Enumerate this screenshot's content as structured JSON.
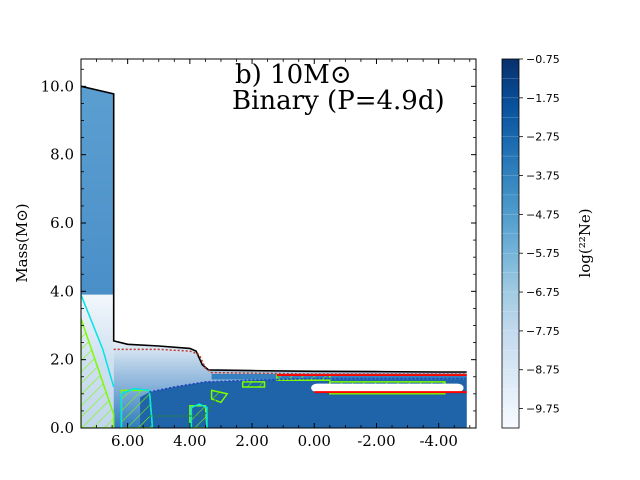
{
  "chart_data": {
    "type": "heatmap",
    "title_line1": "b) 10M⊙",
    "title_line2": "Binary (P=4.9d)",
    "ylabel": "Mass(M⊙)",
    "xlabel": "",
    "x_axis_reversed": true,
    "xlim": [
      7.5,
      -5.2
    ],
    "ylim": [
      0,
      10.8
    ],
    "x_ticks": [
      6.0,
      4.0,
      2.0,
      0.0,
      -2.0,
      -4.0
    ],
    "x_tick_labels": [
      "6.00",
      "4.00",
      "2.00",
      "0.00",
      "-2.00",
      "-4.00"
    ],
    "y_ticks": [
      0.0,
      2.0,
      4.0,
      6.0,
      8.0,
      10.0
    ],
    "y_tick_labels": [
      "0.0",
      "2.0",
      "4.0",
      "6.0",
      "8.0",
      "10.0"
    ],
    "colorbar": {
      "label": "log(²²Ne)",
      "range": [
        -10.25,
        -0.75
      ],
      "tick_values": [
        -0.75,
        -1.75,
        -2.75,
        -3.75,
        -4.75,
        -5.75,
        -6.75,
        -7.75,
        -8.75,
        -9.75
      ],
      "tick_labels": [
        "−0.75",
        "−1.75",
        "−2.75",
        "−3.75",
        "−4.75",
        "−5.75",
        "−6.75",
        "−7.75",
        "−8.75",
        "−9.75"
      ],
      "colormap": "Blues"
    },
    "total_mass_boundary": [
      [
        7.5,
        10.0
      ],
      [
        6.45,
        9.78
      ],
      [
        6.45,
        2.55
      ],
      [
        6.0,
        2.45
      ],
      [
        5.0,
        2.4
      ],
      [
        4.0,
        2.33
      ],
      [
        3.8,
        2.25
      ],
      [
        3.6,
        1.85
      ],
      [
        3.4,
        1.7
      ],
      [
        2.0,
        1.68
      ],
      [
        0.0,
        1.66
      ],
      [
        -2.0,
        1.65
      ],
      [
        -4.0,
        1.64
      ],
      [
        -4.9,
        1.64
      ]
    ],
    "he_core_boundary": [
      [
        6.45,
        2.3
      ],
      [
        5.0,
        2.3
      ],
      [
        4.0,
        2.25
      ],
      [
        3.7,
        2.15
      ],
      [
        3.5,
        1.75
      ],
      [
        3.3,
        1.62
      ],
      [
        0.0,
        1.58
      ],
      [
        -4.9,
        1.58
      ]
    ],
    "co_core_boundary": [
      [
        5.3,
        1.05
      ],
      [
        4.5,
        1.2
      ],
      [
        3.5,
        1.35
      ],
      [
        2.0,
        1.4
      ],
      [
        0.0,
        1.45
      ],
      [
        -4.9,
        1.45
      ]
    ],
    "colors": {
      "total_mass": "#000000",
      "he_core": "#c0392b",
      "co_core": "#1f3fbf",
      "convection": "#7cfc00",
      "convection_outline": "#00e5e5",
      "overshoot": "#228b22",
      "burning": "#ff0000"
    }
  }
}
